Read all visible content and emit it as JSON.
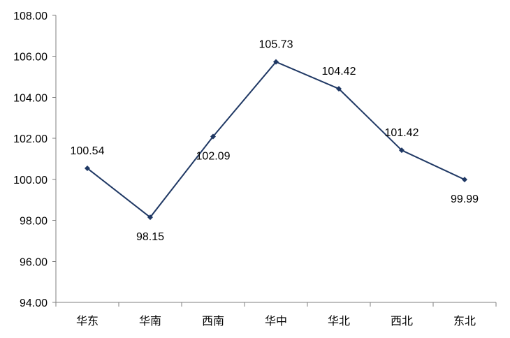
{
  "chart_data": {
    "type": "line",
    "title": "",
    "xlabel": "",
    "ylabel": "",
    "categories": [
      "华东",
      "华南",
      "西南",
      "华中",
      "华北",
      "西北",
      "东北"
    ],
    "series": [
      {
        "name": "",
        "values": [
          100.54,
          98.15,
          102.09,
          105.73,
          104.42,
          101.42,
          99.99
        ],
        "color": "#1f3864"
      }
    ],
    "data_labels": [
      "100.54",
      "98.15",
      "102.09",
      "105.73",
      "104.42",
      "101.42",
      "99.99"
    ],
    "data_label_positions": [
      "above",
      "below",
      "below",
      "above",
      "above",
      "above",
      "below"
    ],
    "ylim": [
      94,
      108
    ],
    "yticks": [
      94,
      96,
      98,
      100,
      102,
      104,
      106,
      108
    ],
    "ytick_labels": [
      "94.00",
      "96.00",
      "98.00",
      "100.00",
      "102.00",
      "104.00",
      "106.00",
      "108.00"
    ],
    "grid": false,
    "legend": "none",
    "axis_color": "#7f7f7f",
    "marker": "diamond"
  }
}
